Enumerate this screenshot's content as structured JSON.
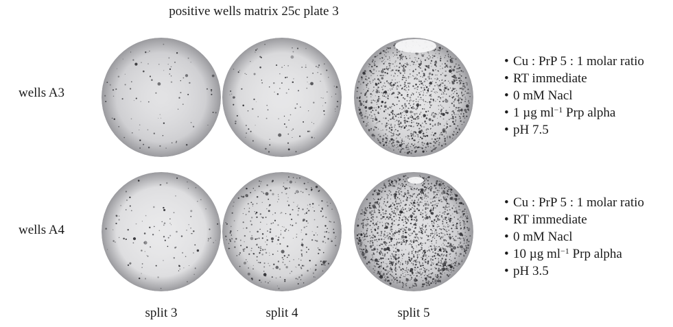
{
  "title": "positive wells matrix 25c plate 3",
  "rows": [
    {
      "label": "wells A3",
      "conditions": [
        {
          "text": "Cu : PrP 5 : 1 molar ratio"
        },
        {
          "text": "RT immediate"
        },
        {
          "text": "0 mM Nacl"
        },
        {
          "prefix": "1 µg ml",
          "sup": "−1",
          "suffix": " Prp alpha"
        },
        {
          "text": "pH 7.5"
        }
      ]
    },
    {
      "label": "wells A4",
      "conditions": [
        {
          "text": "Cu : PrP 5 : 1 molar ratio"
        },
        {
          "text": "RT immediate"
        },
        {
          "text": "0 mM Nacl"
        },
        {
          "prefix": "10 µg ml",
          "sup": "−1",
          "suffix": " Prp alpha"
        },
        {
          "text": "pH 3.5"
        }
      ]
    }
  ],
  "columns": [
    {
      "label": "split 3"
    },
    {
      "label": "split 4"
    },
    {
      "label": "split 5"
    }
  ],
  "wells": [
    {
      "row": 0,
      "col": 0,
      "base_color": "#cfcfd2",
      "spot_density": 90,
      "name": "well-a3-split-3"
    },
    {
      "row": 0,
      "col": 1,
      "base_color": "#d9d9db",
      "spot_density": 130,
      "name": "well-a3-split-4"
    },
    {
      "row": 0,
      "col": 2,
      "base_color": "#d2d2d4",
      "spot_density": 1400,
      "name": "well-a3-split-5"
    },
    {
      "row": 1,
      "col": 0,
      "base_color": "#dedee0",
      "spot_density": 110,
      "name": "well-a4-split-3"
    },
    {
      "row": 1,
      "col": 1,
      "base_color": "#d6d6d8",
      "spot_density": 380,
      "name": "well-a4-split-4"
    },
    {
      "row": 1,
      "col": 2,
      "base_color": "#cdcdd0",
      "spot_density": 1900,
      "name": "well-a4-split-5"
    }
  ],
  "colors": {
    "spot": "#2a2a2e",
    "rim": "#9a9a9e"
  }
}
